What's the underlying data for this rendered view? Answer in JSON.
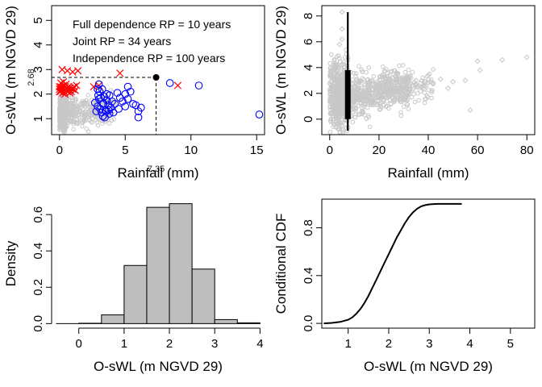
{
  "chart_data": [
    {
      "panel": "top-left",
      "type": "scatter",
      "xlabel": "Rainfall (mm)",
      "ylabel": "O-sWL (m NGVD 29)",
      "xlim": [
        -0.6,
        15.6
      ],
      "ylim": [
        0.35,
        5.6
      ],
      "xticks": [
        0,
        5,
        10,
        15
      ],
      "yticks": [
        1,
        2,
        3,
        4,
        5
      ],
      "annotations": [
        "Full dependence RP = 10 years",
        "Joint RP = 34 years",
        "Independence RP = 100 years"
      ],
      "design_point": {
        "x": 7.35,
        "y": 2.68,
        "x_label": "7.35",
        "y_label": "2.68"
      },
      "colors": {
        "observed": "#c8c8c8",
        "blue_events": "#0000ff",
        "red_events": "#ff0000",
        "design": "#000000"
      },
      "series": [
        {
          "marker": "circle-open",
          "color": "#0000ff",
          "points": [
            [
              2.7,
              1.65
            ],
            [
              2.9,
              1.5
            ],
            [
              3.0,
              1.8
            ],
            [
              3.1,
              1.4
            ],
            [
              3.2,
              1.25
            ],
            [
              3.3,
              1.6
            ],
            [
              3.4,
              1.9
            ],
            [
              3.5,
              1.35
            ],
            [
              3.6,
              1.75
            ],
            [
              3.7,
              1.55
            ],
            [
              3.8,
              1.2
            ],
            [
              3.9,
              1.45
            ],
            [
              4.0,
              1.7
            ],
            [
              2.8,
              1.3
            ],
            [
              3.05,
              2.1
            ],
            [
              3.25,
              2.2
            ],
            [
              3.45,
              1.05
            ],
            [
              3.6,
              2.0
            ],
            [
              3.8,
              1.95
            ],
            [
              4.2,
              1.6
            ],
            [
              4.5,
              1.4
            ],
            [
              4.8,
              1.7
            ],
            [
              5.0,
              1.5
            ],
            [
              5.2,
              1.8
            ],
            [
              5.4,
              2.1
            ],
            [
              5.6,
              1.6
            ],
            [
              5.8,
              1.55
            ],
            [
              5.2,
              2.3
            ],
            [
              5.0,
              2.0
            ],
            [
              4.6,
              1.85
            ],
            [
              4.4,
              2.05
            ],
            [
              6.0,
              1.3
            ],
            [
              6.2,
              1.45
            ],
            [
              6.0,
              1.05
            ],
            [
              3.0,
              2.4
            ],
            [
              2.9,
              2.2
            ],
            [
              3.3,
              1.1
            ],
            [
              3.55,
              1.3
            ],
            [
              4.1,
              1.25
            ],
            [
              8.4,
              2.45
            ],
            [
              10.6,
              2.35
            ],
            [
              15.2,
              1.17
            ],
            [
              3.15,
              1.85
            ],
            [
              3.35,
              1.62
            ],
            [
              3.75,
              1.35
            ],
            [
              2.95,
              1.95
            ]
          ]
        },
        {
          "marker": "cross",
          "color": "#ff0000",
          "points": [
            [
              0.0,
              2.2
            ],
            [
              0.05,
              2.1
            ],
            [
              0.1,
              2.3
            ],
            [
              0.15,
              2.15
            ],
            [
              0.2,
              2.25
            ],
            [
              0.25,
              2.05
            ],
            [
              0.3,
              2.35
            ],
            [
              0.35,
              2.1
            ],
            [
              0.4,
              2.2
            ],
            [
              0.45,
              2.3
            ],
            [
              0.5,
              2.15
            ],
            [
              0.55,
              2.25
            ],
            [
              0.6,
              2.1
            ],
            [
              0.65,
              2.2
            ],
            [
              0.7,
              2.3
            ],
            [
              0.75,
              2.15
            ],
            [
              0.8,
              2.25
            ],
            [
              0.9,
              2.1
            ],
            [
              1.0,
              2.2
            ],
            [
              1.1,
              2.3
            ],
            [
              1.2,
              2.15
            ],
            [
              0.1,
              2.45
            ],
            [
              0.3,
              2.5
            ],
            [
              0.5,
              2.4
            ],
            [
              0.2,
              3.0
            ],
            [
              0.6,
              2.95
            ],
            [
              1.0,
              2.9
            ],
            [
              1.4,
              2.95
            ],
            [
              2.6,
              2.3
            ],
            [
              3.0,
              2.35
            ],
            [
              4.6,
              2.85
            ],
            [
              9.0,
              2.35
            ],
            [
              0.0,
              2.1
            ],
            [
              0.0,
              2.3
            ],
            [
              0.12,
              2.18
            ],
            [
              0.4,
              2.0
            ],
            [
              0.8,
              2.05
            ],
            [
              1.3,
              2.35
            ]
          ]
        }
      ]
    },
    {
      "panel": "top-right",
      "type": "scatter",
      "xlabel": "Rainfall (mm)",
      "ylabel": "O-sWL (m NGVD 29)",
      "xlim": [
        -3.2,
        83.2
      ],
      "ylim": [
        -1.2,
        8.8
      ],
      "xticks": [
        0,
        20,
        40,
        60,
        80
      ],
      "yticks": [
        0,
        2,
        4,
        6,
        8
      ],
      "conditional_x": 7.35,
      "vertical_range": [
        -0.9,
        8.3
      ],
      "thick_range": [
        0.0,
        3.8
      ],
      "colors": {
        "observed": "#c8c8c8",
        "line": "#000000"
      },
      "extra_points": [
        [
          33,
          3.2
        ],
        [
          35,
          3.0
        ],
        [
          38,
          2.6
        ],
        [
          40,
          3.4
        ],
        [
          42,
          2.8
        ],
        [
          45,
          3.1
        ],
        [
          48,
          2.4
        ],
        [
          50,
          2.9
        ],
        [
          55,
          3.0
        ],
        [
          57,
          0.7
        ],
        [
          60,
          4.5
        ],
        [
          61,
          3.8
        ],
        [
          70,
          4.6
        ],
        [
          80,
          4.8
        ],
        [
          27,
          3.6
        ],
        [
          30,
          2.2
        ],
        [
          5,
          6.2
        ],
        [
          5,
          7.0
        ],
        [
          5,
          8.3
        ],
        [
          4,
          5.8
        ]
      ]
    },
    {
      "panel": "bottom-left",
      "type": "bar",
      "xlabel": "O-sWL (m NGVD 29)",
      "ylabel": "Density",
      "xlim": [
        -0.6,
        4.1
      ],
      "ylim": [
        -0.025,
        0.685
      ],
      "xticks": [
        0,
        1,
        2,
        3,
        4
      ],
      "yticks": [
        0.0,
        0.2,
        0.4,
        0.6
      ],
      "bin_width": 0.5,
      "bins": [
        0.0,
        0.5,
        1.0,
        1.5,
        2.0,
        2.5,
        3.0,
        3.5
      ],
      "values": [
        0.002,
        0.048,
        0.32,
        0.64,
        0.66,
        0.3,
        0.022,
        0.004
      ],
      "colors": {
        "bar_fill": "#bebebe",
        "bar_stroke": "#000000"
      }
    },
    {
      "panel": "bottom-right",
      "type": "line",
      "xlabel": "O-sWL (m NGVD 29)",
      "ylabel": "Conditional CDF",
      "xlim": [
        0.35,
        5.6
      ],
      "ylim": [
        -0.04,
        1.04
      ],
      "xticks": [
        1,
        2,
        3,
        4,
        5
      ],
      "yticks": [
        0.0,
        0.4,
        0.8
      ],
      "x": [
        0.4,
        0.6,
        0.8,
        1.0,
        1.1,
        1.2,
        1.3,
        1.4,
        1.5,
        1.6,
        1.7,
        1.8,
        1.9,
        2.0,
        2.1,
        2.2,
        2.3,
        2.4,
        2.5,
        2.6,
        2.7,
        2.8,
        2.9,
        3.0,
        3.1,
        3.2,
        3.4,
        3.6,
        3.8
      ],
      "y": [
        0.0,
        0.004,
        0.012,
        0.03,
        0.05,
        0.08,
        0.12,
        0.17,
        0.23,
        0.3,
        0.37,
        0.44,
        0.51,
        0.58,
        0.65,
        0.72,
        0.78,
        0.84,
        0.89,
        0.93,
        0.96,
        0.98,
        0.99,
        0.996,
        0.999,
        1.0,
        1.0,
        1.0,
        1.0
      ]
    }
  ]
}
